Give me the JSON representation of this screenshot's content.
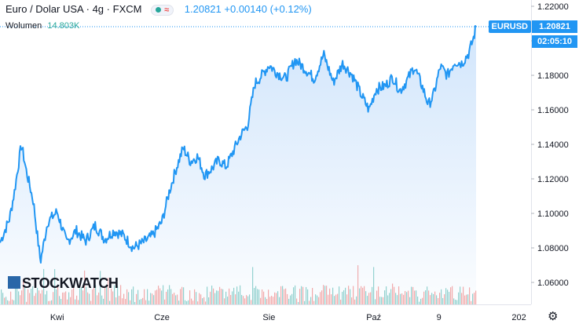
{
  "header": {
    "symbol": "Euro / Dolar USA",
    "interval": "4g",
    "exchange": "FXCM",
    "pill_symbol": "≈",
    "last": "1.20821",
    "change": "+0.00140 (+0.12%)"
  },
  "volume_legend": {
    "label": "Wolumen",
    "value": "14.803K"
  },
  "price_tags": {
    "symbol": "EURUSD",
    "price": "1.20821",
    "countdown": "02:05:10"
  },
  "logo": {
    "text": "STOCKWATCH"
  },
  "colors": {
    "line": "#2196f3",
    "fill_top": "#cfe4fb",
    "vol_up": "#26a69a",
    "vol_down": "#ef5350",
    "grid": "#f0f3fa"
  },
  "icons": {
    "settings": "gear-icon"
  },
  "chart_data": {
    "type": "area",
    "title": "Euro / Dolar USA · 4g · FXCM",
    "xlabel": "",
    "ylabel": "",
    "ylim": [
      1.05,
      1.225
    ],
    "yticks": [
      "1.22000",
      "1.20000",
      "1.18000",
      "1.16000",
      "1.14000",
      "1.12000",
      "1.10000",
      "1.08000",
      "1.06000"
    ],
    "ytick_values": [
      1.22,
      1.2,
      1.18,
      1.16,
      1.14,
      1.12,
      1.1,
      1.08,
      1.06
    ],
    "xticks": [
      {
        "label": "Kwi",
        "t": 0.12
      },
      {
        "label": "Cze",
        "t": 0.34
      },
      {
        "label": "Sie",
        "t": 0.565
      },
      {
        "label": "Paź",
        "t": 0.785
      },
      {
        "label": "9",
        "t": 0.922
      },
      {
        "label": "202",
        "t": 1.09
      }
    ],
    "series": [
      {
        "name": "EURUSD",
        "keypoints": [
          [
            0.0,
            1.083
          ],
          [
            0.02,
            1.097
          ],
          [
            0.03,
            1.112
          ],
          [
            0.045,
            1.14
          ],
          [
            0.055,
            1.125
          ],
          [
            0.07,
            1.107
          ],
          [
            0.085,
            1.072
          ],
          [
            0.1,
            1.095
          ],
          [
            0.12,
            1.101
          ],
          [
            0.14,
            1.083
          ],
          [
            0.16,
            1.09
          ],
          [
            0.18,
            1.084
          ],
          [
            0.2,
            1.093
          ],
          [
            0.22,
            1.085
          ],
          [
            0.24,
            1.09
          ],
          [
            0.26,
            1.087
          ],
          [
            0.28,
            1.08
          ],
          [
            0.3,
            1.083
          ],
          [
            0.32,
            1.087
          ],
          [
            0.34,
            1.095
          ],
          [
            0.355,
            1.112
          ],
          [
            0.37,
            1.126
          ],
          [
            0.385,
            1.138
          ],
          [
            0.4,
            1.13
          ],
          [
            0.415,
            1.133
          ],
          [
            0.43,
            1.122
          ],
          [
            0.445,
            1.126
          ],
          [
            0.46,
            1.131
          ],
          [
            0.475,
            1.127
          ],
          [
            0.49,
            1.136
          ],
          [
            0.505,
            1.145
          ],
          [
            0.52,
            1.151
          ],
          [
            0.535,
            1.175
          ],
          [
            0.55,
            1.18
          ],
          [
            0.565,
            1.186
          ],
          [
            0.58,
            1.182
          ],
          [
            0.6,
            1.178
          ],
          [
            0.62,
            1.189
          ],
          [
            0.64,
            1.184
          ],
          [
            0.66,
            1.178
          ],
          [
            0.68,
            1.192
          ],
          [
            0.7,
            1.176
          ],
          [
            0.72,
            1.187
          ],
          [
            0.74,
            1.18
          ],
          [
            0.76,
            1.168
          ],
          [
            0.775,
            1.16
          ],
          [
            0.79,
            1.172
          ],
          [
            0.81,
            1.174
          ],
          [
            0.825,
            1.179
          ],
          [
            0.84,
            1.171
          ],
          [
            0.855,
            1.177
          ],
          [
            0.87,
            1.185
          ],
          [
            0.885,
            1.175
          ],
          [
            0.9,
            1.163
          ],
          [
            0.91,
            1.168
          ],
          [
            0.925,
            1.185
          ],
          [
            0.94,
            1.18
          ],
          [
            0.955,
            1.188
          ],
          [
            0.97,
            1.187
          ],
          [
            0.985,
            1.193
          ],
          [
            0.995,
            1.202
          ],
          [
            1.0,
            1.2082
          ]
        ]
      }
    ],
    "volume": {
      "label": "Wolumen",
      "last": 14803
    }
  }
}
